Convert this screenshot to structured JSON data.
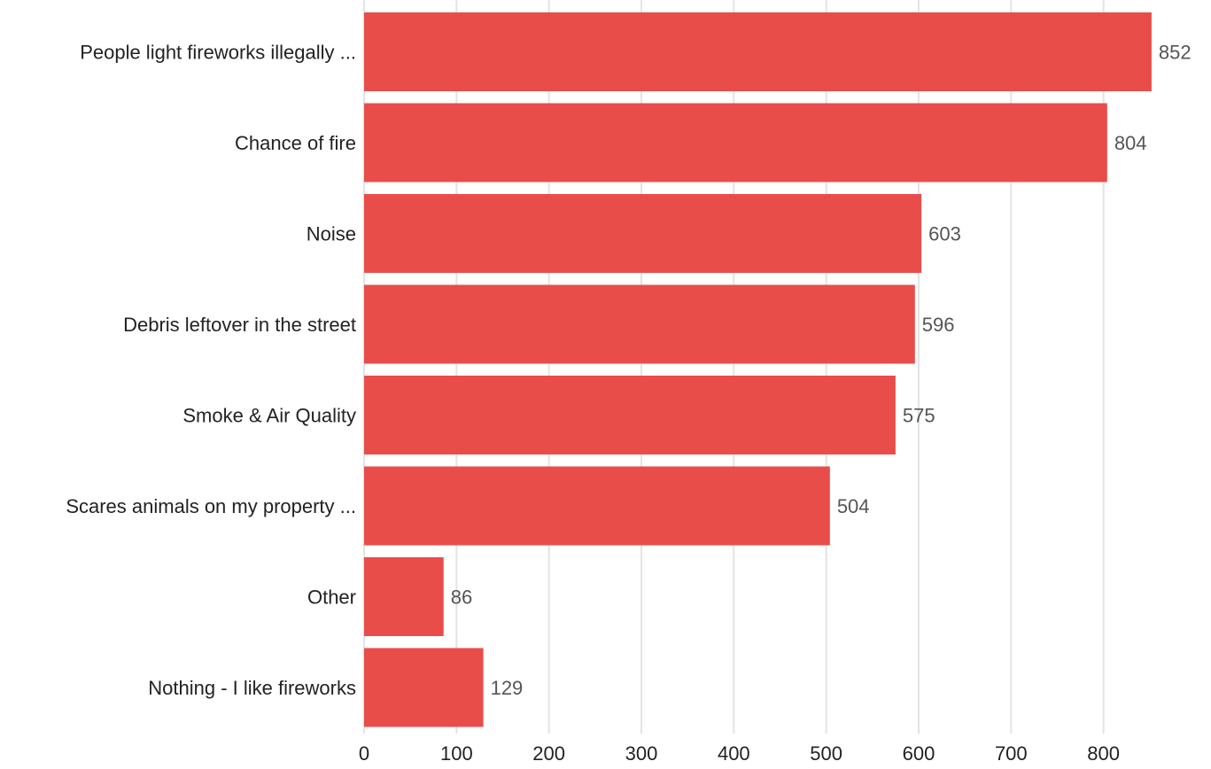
{
  "chart_data": {
    "type": "bar",
    "orientation": "horizontal",
    "categories": [
      "People light fireworks illegally ...",
      "Chance of fire",
      "Noise",
      "Debris leftover in the street",
      "Smoke & Air Quality",
      "Scares animals on my property ...",
      "Other",
      "Nothing - I like fireworks"
    ],
    "values": [
      852,
      804,
      603,
      596,
      575,
      504,
      86,
      129
    ],
    "xlim": [
      0,
      900
    ],
    "xticks": [
      0,
      100,
      200,
      300,
      400,
      500,
      600,
      700,
      800
    ],
    "grid": true,
    "data_labels": true,
    "bar_color": "#e84d4a"
  }
}
